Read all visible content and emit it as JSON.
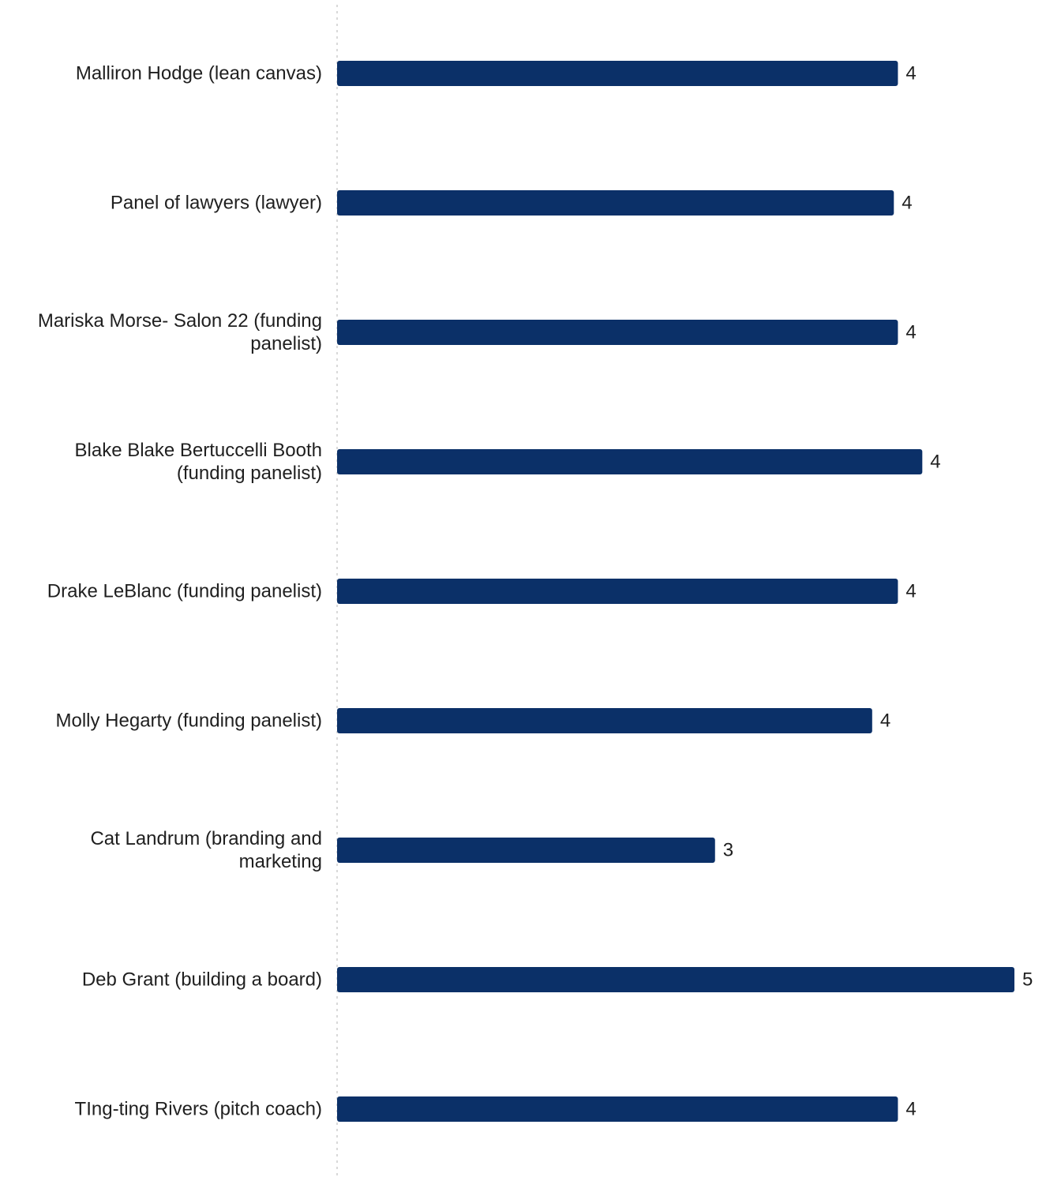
{
  "chart_data": {
    "type": "bar",
    "orientation": "horizontal",
    "title": "",
    "xlabel": "",
    "ylabel": "",
    "grid": false,
    "legend": "none",
    "bar_color": "#0b3068",
    "axis_line_color": "#d9d9d9",
    "categories": [
      [
        "Malliron Hodge (lean canvas)"
      ],
      [
        "Panel of lawyers (lawyer)"
      ],
      [
        "Mariska Morse- Salon 22 (funding",
        "panelist)"
      ],
      [
        "Blake Blake Bertuccelli Booth",
        "(funding panelist)"
      ],
      [
        "Drake LeBlanc (funding panelist)"
      ],
      [
        "Molly Hegarty (funding panelist)"
      ],
      [
        "Cat Landrum (branding and",
        "marketing"
      ],
      [
        "Deb Grant (building a board)"
      ],
      [
        "TIng-ting Rivers (pitch coach)"
      ]
    ],
    "values": [
      4.14,
      4.11,
      4.14,
      4.32,
      4.14,
      3.95,
      2.79,
      5.0,
      4.14
    ],
    "value_labels": [
      "4",
      "4",
      "4",
      "4",
      "4",
      "4",
      "3",
      "5",
      "4"
    ],
    "xlim": [
      0,
      5
    ]
  }
}
